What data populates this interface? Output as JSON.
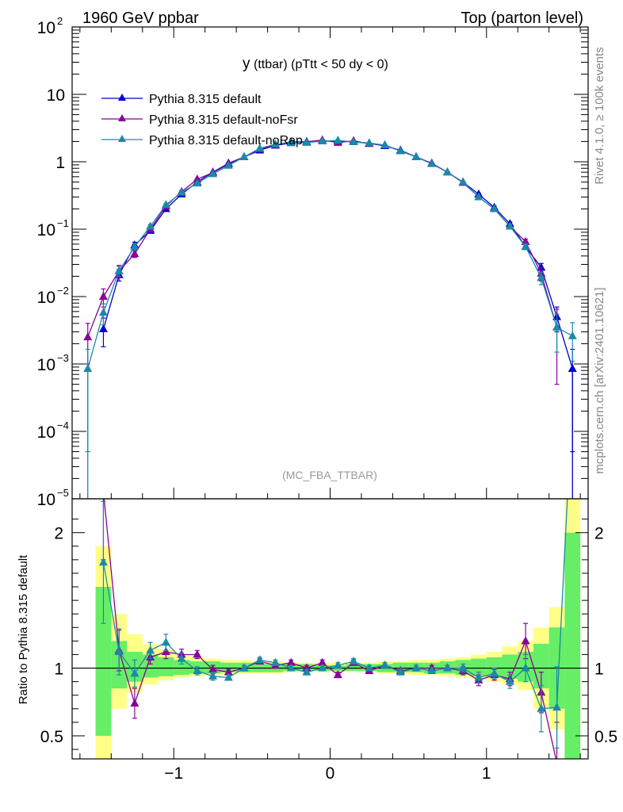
{
  "header": {
    "left": "1960 GeV ppbar",
    "right": "Top (parton level)"
  },
  "plot_title": "y",
  "plot_subtitle": "(ttbar) (pTtt < 50 dy < 0)",
  "analysis_label": "(MC_FBA_TTBAR)",
  "side_text": {
    "upper": "Rivet 4.1.0, ≥ 100k events",
    "lower": "mcplots.cern.ch [arXiv:2401.10621]"
  },
  "colors": {
    "default": "#0000cc",
    "noFsr": "#880099",
    "noRap": "#1a8aa8",
    "band_inner": "#66ee66",
    "band_outer": "#ffff88"
  },
  "chart_data": [
    {
      "type": "line",
      "panel": "main",
      "yscale": "log",
      "xlim": [
        -1.65,
        1.65
      ],
      "ylim": [
        1e-05,
        100
      ],
      "yticks": [
        {
          "value": 100,
          "label": "10",
          "exp": "2"
        },
        {
          "value": 10,
          "label": "10",
          "exp": ""
        },
        {
          "value": 1,
          "label": "1",
          "exp": ""
        },
        {
          "value": 0.1,
          "label": "10",
          "exp": "−1"
        },
        {
          "value": 0.01,
          "label": "10",
          "exp": "−2"
        },
        {
          "value": 0.001,
          "label": "10",
          "exp": "−3"
        },
        {
          "value": 0.0001,
          "label": "10",
          "exp": "−4"
        },
        {
          "value": 1e-05,
          "label": "10",
          "exp": "−5"
        }
      ],
      "x": [
        -1.55,
        -1.45,
        -1.35,
        -1.25,
        -1.15,
        -1.05,
        -0.95,
        -0.85,
        -0.75,
        -0.65,
        -0.55,
        -0.45,
        -0.35,
        -0.25,
        -0.15,
        -0.05,
        0.05,
        0.15,
        0.25,
        0.35,
        0.45,
        0.55,
        0.65,
        0.75,
        0.85,
        0.95,
        1.05,
        1.15,
        1.25,
        1.35,
        1.45,
        1.55
      ],
      "series": [
        {
          "name": "Pythia 8.315 default",
          "color_key": "default",
          "values": [
            0.0,
            0.0033,
            0.021,
            0.058,
            0.095,
            0.2,
            0.33,
            0.5,
            0.7,
            0.95,
            1.18,
            1.48,
            1.75,
            1.9,
            1.98,
            2.02,
            2.02,
            1.97,
            1.88,
            1.72,
            1.48,
            1.18,
            0.95,
            0.7,
            0.5,
            0.33,
            0.21,
            0.12,
            0.055,
            0.027,
            0.005,
            0.00085
          ],
          "errors": [
            0,
            0.0015,
            0.004,
            0.006,
            0.006,
            0.01,
            0.01,
            0.01,
            0.01,
            0.01,
            0.01,
            0.01,
            0.01,
            0.01,
            0.01,
            0.01,
            0.01,
            0.01,
            0.01,
            0.01,
            0.01,
            0.01,
            0.01,
            0.01,
            0.01,
            0.01,
            0.01,
            0.008,
            0.005,
            0.004,
            0.002,
            0.0008
          ]
        },
        {
          "name": "Pythia 8.315 default-noFsr",
          "color_key": "noFsr",
          "values": [
            0.0025,
            0.01,
            0.024,
            0.043,
            0.1,
            0.22,
            0.36,
            0.55,
            0.69,
            0.92,
            1.18,
            1.55,
            1.78,
            1.98,
            1.98,
            2.1,
            1.92,
            2.05,
            1.85,
            1.77,
            1.45,
            1.18,
            0.95,
            0.7,
            0.49,
            0.3,
            0.2,
            0.11,
            0.065,
            0.022,
            0.0035,
            0.0
          ],
          "errors": [
            0.0015,
            0.003,
            0.005,
            0.005,
            0.007,
            0.01,
            0.01,
            0.01,
            0.01,
            0.01,
            0.01,
            0.01,
            0.01,
            0.01,
            0.01,
            0.01,
            0.01,
            0.01,
            0.01,
            0.01,
            0.01,
            0.01,
            0.01,
            0.01,
            0.01,
            0.01,
            0.01,
            0.008,
            0.006,
            0.005,
            0.003,
            0
          ]
        },
        {
          "name": "Pythia 8.315 default-noRap",
          "color_key": "noRap",
          "values": [
            0.00085,
            0.0058,
            0.024,
            0.055,
            0.11,
            0.23,
            0.35,
            0.48,
            0.66,
            0.88,
            1.18,
            1.58,
            1.82,
            1.92,
            1.92,
            2.02,
            2.08,
            1.97,
            1.9,
            1.76,
            1.44,
            1.18,
            0.93,
            0.7,
            0.5,
            0.3,
            0.2,
            0.11,
            0.055,
            0.019,
            0.0035,
            0.0026
          ],
          "errors": [
            0.0008,
            0.002,
            0.004,
            0.006,
            0.007,
            0.01,
            0.01,
            0.01,
            0.01,
            0.01,
            0.01,
            0.01,
            0.01,
            0.01,
            0.01,
            0.01,
            0.01,
            0.01,
            0.01,
            0.01,
            0.01,
            0.01,
            0.01,
            0.01,
            0.01,
            0.01,
            0.01,
            0.008,
            0.005,
            0.004,
            0.002,
            0.0015
          ]
        }
      ]
    },
    {
      "type": "line",
      "panel": "ratio",
      "ylabel": "Ratio to Pythia 8.315 default",
      "xlim": [
        -1.65,
        1.65
      ],
      "ylim": [
        0.33,
        2.25
      ],
      "yticks": [
        0.5,
        1,
        2
      ],
      "xticks": [
        -1,
        0,
        1
      ],
      "xticklabels": [
        "−1",
        "0",
        "1"
      ],
      "x": [
        -1.55,
        -1.45,
        -1.35,
        -1.25,
        -1.15,
        -1.05,
        -0.95,
        -0.85,
        -0.75,
        -0.65,
        -0.55,
        -0.45,
        -0.35,
        -0.25,
        -0.15,
        -0.05,
        0.05,
        0.15,
        0.25,
        0.35,
        0.45,
        0.55,
        0.65,
        0.75,
        0.85,
        0.95,
        1.05,
        1.15,
        1.25,
        1.35,
        1.45,
        1.55
      ],
      "bands": {
        "inner": [
          [
            0.0,
            0.0
          ],
          [
            0.5,
            1.6
          ],
          [
            0.85,
            1.2
          ],
          [
            0.9,
            1.12
          ],
          [
            0.93,
            1.1
          ],
          [
            0.94,
            1.08
          ],
          [
            0.95,
            1.06
          ],
          [
            0.96,
            1.05
          ],
          [
            0.96,
            1.05
          ],
          [
            0.97,
            1.04
          ],
          [
            0.97,
            1.04
          ],
          [
            0.97,
            1.03
          ],
          [
            0.97,
            1.03
          ],
          [
            0.98,
            1.03
          ],
          [
            0.98,
            1.03
          ],
          [
            0.98,
            1.02
          ],
          [
            0.98,
            1.02
          ],
          [
            0.98,
            1.03
          ],
          [
            0.98,
            1.03
          ],
          [
            0.97,
            1.03
          ],
          [
            0.97,
            1.04
          ],
          [
            0.97,
            1.04
          ],
          [
            0.96,
            1.04
          ],
          [
            0.96,
            1.05
          ],
          [
            0.95,
            1.06
          ],
          [
            0.94,
            1.07
          ],
          [
            0.93,
            1.08
          ],
          [
            0.92,
            1.1
          ],
          [
            0.9,
            1.12
          ],
          [
            0.85,
            1.18
          ],
          [
            0.7,
            1.3
          ],
          [
            0.33,
            2.0
          ]
        ],
        "outer": [
          [
            0.0,
            0.0
          ],
          [
            0.33,
            1.9
          ],
          [
            0.7,
            1.4
          ],
          [
            0.82,
            1.25
          ],
          [
            0.88,
            1.18
          ],
          [
            0.91,
            1.14
          ],
          [
            0.93,
            1.1
          ],
          [
            0.94,
            1.08
          ],
          [
            0.95,
            1.07
          ],
          [
            0.95,
            1.06
          ],
          [
            0.96,
            1.06
          ],
          [
            0.96,
            1.05
          ],
          [
            0.96,
            1.05
          ],
          [
            0.97,
            1.04
          ],
          [
            0.97,
            1.04
          ],
          [
            0.97,
            1.04
          ],
          [
            0.97,
            1.04
          ],
          [
            0.97,
            1.04
          ],
          [
            0.97,
            1.04
          ],
          [
            0.96,
            1.05
          ],
          [
            0.96,
            1.05
          ],
          [
            0.95,
            1.06
          ],
          [
            0.95,
            1.06
          ],
          [
            0.94,
            1.07
          ],
          [
            0.93,
            1.08
          ],
          [
            0.92,
            1.1
          ],
          [
            0.9,
            1.12
          ],
          [
            0.88,
            1.16
          ],
          [
            0.84,
            1.2
          ],
          [
            0.7,
            1.3
          ],
          [
            0.55,
            1.45
          ],
          [
            0.33,
            2.25
          ]
        ]
      },
      "series": [
        {
          "name": "Pythia 8.315 default-noFsr",
          "color_key": "noFsr",
          "values": [
            null,
            2.3,
            1.13,
            0.74,
            1.08,
            1.12,
            1.1,
            1.1,
            0.99,
            0.97,
            1.0,
            1.05,
            1.02,
            1.04,
            1.0,
            1.04,
            0.95,
            1.04,
            0.98,
            1.02,
            0.98,
            1.0,
            1.0,
            1.0,
            0.98,
            0.91,
            0.95,
            0.92,
            1.2,
            0.82,
            0.3,
            null
          ],
          "errors": [
            0,
            0.5,
            0.15,
            0.11,
            0.05,
            0.05,
            0.04,
            0.03,
            0.03,
            0.02,
            0.02,
            0.02,
            0.02,
            0.02,
            0.02,
            0.02,
            0.02,
            0.02,
            0.02,
            0.02,
            0.02,
            0.02,
            0.02,
            0.02,
            0.03,
            0.04,
            0.04,
            0.05,
            0.13,
            0.15,
            0.3,
            0
          ]
        },
        {
          "name": "Pythia 8.315 default-noRap",
          "color_key": "noRap",
          "values": [
            null,
            1.78,
            1.12,
            0.96,
            1.13,
            1.19,
            1.07,
            0.98,
            0.94,
            0.93,
            1.0,
            1.06,
            1.04,
            1.0,
            0.97,
            1.0,
            1.02,
            1.05,
            1.0,
            1.02,
            0.97,
            1.0,
            0.98,
            1.0,
            1.0,
            0.93,
            0.96,
            0.9,
            1.0,
            0.7,
            0.71,
            3.0
          ],
          "errors": [
            0,
            0.45,
            0.17,
            0.1,
            0.06,
            0.06,
            0.04,
            0.03,
            0.03,
            0.02,
            0.02,
            0.02,
            0.02,
            0.02,
            0.02,
            0.02,
            0.02,
            0.02,
            0.02,
            0.02,
            0.02,
            0.02,
            0.02,
            0.02,
            0.03,
            0.04,
            0.04,
            0.05,
            0.1,
            0.17,
            0.3,
            0
          ]
        }
      ]
    }
  ]
}
